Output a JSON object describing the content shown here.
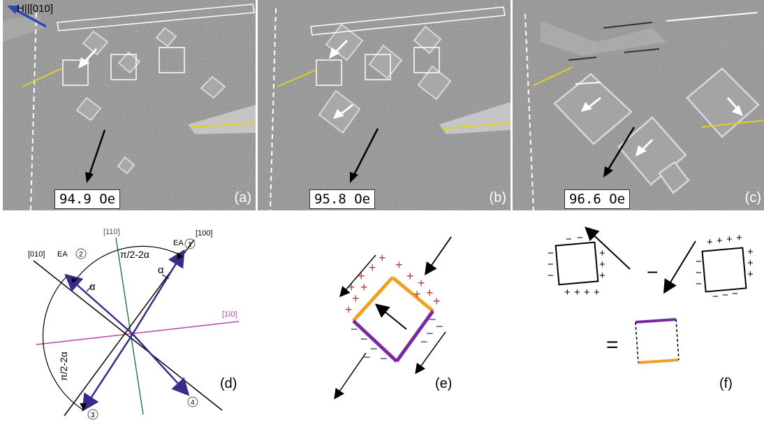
{
  "panels": [
    {
      "id": "a",
      "label": "(a)",
      "field": "94.9 Oe"
    },
    {
      "id": "b",
      "label": "(b)",
      "field": "95.8 Oe"
    },
    {
      "id": "c",
      "label": "(c)",
      "field": "96.6 Oe"
    }
  ],
  "field_direction_label": "H||[010]",
  "diagram_d": {
    "label": "(d)",
    "axes": [
      "[110]",
      "[100]",
      "[010]",
      "[1ī0]"
    ],
    "easy_axis_label": "EA",
    "circled_numbers": [
      "1",
      "2",
      "3",
      "4"
    ],
    "angle_labels": [
      "π/2-2α",
      "α",
      "α",
      "π/2-2α"
    ]
  },
  "diagram_e": {
    "label": "(e)",
    "plus": "+",
    "minus": "−"
  },
  "diagram_f": {
    "label": "(f)",
    "plus": "+",
    "minus": "−",
    "operator_minus": "−",
    "equals": "="
  },
  "colors": {
    "blue_arrow": "#2a47b8",
    "yellow_line": "#e0d020",
    "orange": "#f0a020",
    "purple": "#7a2aa0",
    "red_plus": "#c0392b",
    "navy_minus": "#2a3a8a",
    "magenta_axis": "#c040a0",
    "green_axis": "#2f7a5a",
    "diagram_arrow": "#3a2a8a"
  }
}
